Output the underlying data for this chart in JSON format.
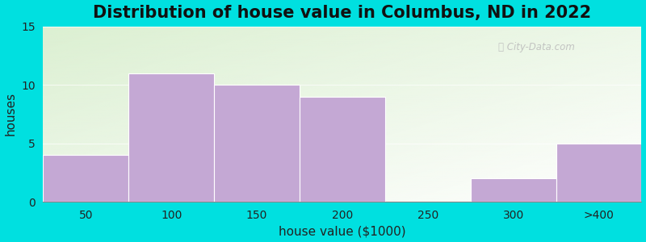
{
  "title": "Distribution of house value in Columbus, ND in 2022",
  "xlabel": "house value ($1000)",
  "ylabel": "houses",
  "categories": [
    "50",
    "100",
    "150",
    "200",
    "250",
    "300",
    ">400"
  ],
  "values": [
    4,
    11,
    10,
    9,
    0,
    2,
    5
  ],
  "bar_color": "#c4a8d4",
  "ylim": [
    0,
    15
  ],
  "yticks": [
    0,
    5,
    10,
    15
  ],
  "background_outer": "#00e0e0",
  "title_fontsize": 15,
  "axis_label_fontsize": 11,
  "tick_fontsize": 10
}
